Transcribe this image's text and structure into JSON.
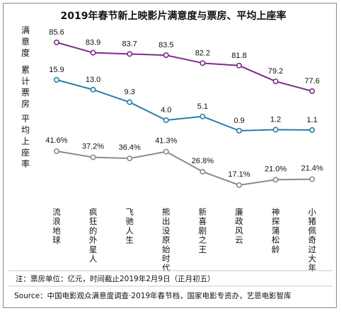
{
  "chart_data": {
    "type": "line",
    "title": "2019年春节新上映影片满意度与票房、平均上座率",
    "categories": [
      "流浪地球",
      "疯狂的外星人",
      "飞驰人生",
      "熊出没原始时代",
      "新喜剧之王",
      "廉政风云",
      "神探蒲松龄",
      "小猪佩奇过大年"
    ],
    "series": [
      {
        "name": "满意度",
        "values": [
          85.6,
          83.9,
          83.7,
          83.5,
          82.2,
          81.8,
          79.2,
          77.6
        ],
        "labels": [
          "85.6",
          "83.9",
          "83.7",
          "83.5",
          "82.2",
          "81.8",
          "79.2",
          "77.6"
        ],
        "color": "#7e2a8c"
      },
      {
        "name": "累计票房",
        "values": [
          15.9,
          13.0,
          9.3,
          4.0,
          5.1,
          0.9,
          1.2,
          1.1
        ],
        "labels": [
          "15.9",
          "13.0",
          "9.3",
          "4.0",
          "5.1",
          "0.9",
          "1.2",
          "1.1"
        ],
        "color": "#2a7fa6"
      },
      {
        "name": "平均上座率",
        "values": [
          41.6,
          37.2,
          36.4,
          41.3,
          26.8,
          17.1,
          21.0,
          21.4
        ],
        "labels": [
          "41.6%",
          "37.2%",
          "36.4%",
          "41.3%",
          "26.8%",
          "17.1%",
          "21.0%",
          "21.4%"
        ],
        "color": "#8a8a8a"
      }
    ],
    "note": "注：票房单位：亿元，时间截止2019年2月9日（正月初五）",
    "source": "Source：中国电影观众满意度调查·2019年春节档，国家电影专资办，艺恩电影智库",
    "grid": false,
    "legend": "left"
  }
}
